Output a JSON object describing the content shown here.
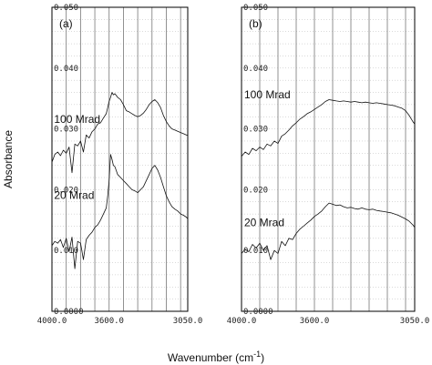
{
  "chart_data": {
    "type": "line",
    "ylabel": "Absorbance",
    "xlabel": "Wavenumber (cm",
    "xlabel_sup": "-1",
    "xlabel_end": ")",
    "panels": [
      {
        "label": "(a)",
        "xlim": [
          4000,
          3050
        ],
        "ylim": [
          0.0,
          0.05
        ],
        "x_ticks": [
          4000,
          3600,
          3050
        ],
        "x_tick_labels": [
          "4000.0",
          "3600.0",
          "3050.0"
        ],
        "y_ticks": [
          0.0,
          0.01,
          0.02,
          0.03,
          0.04,
          0.05
        ],
        "y_tick_labels": [
          "0.0000",
          "0.010",
          "0.020",
          "0.030",
          "0.040",
          "0.050"
        ],
        "grid": true,
        "series": [
          {
            "name": "100 Mrad",
            "label_at": [
              3985,
              0.031
            ],
            "x": [
              4000,
              3980,
              3960,
              3940,
              3920,
              3900,
              3880,
              3860,
              3840,
              3820,
              3800,
              3780,
              3760,
              3740,
              3720,
              3700,
              3680,
              3660,
              3640,
              3620,
              3610,
              3600,
              3590,
              3580,
              3570,
              3560,
              3540,
              3520,
              3500,
              3480,
              3460,
              3440,
              3420,
              3400,
              3380,
              3360,
              3340,
              3320,
              3300,
              3280,
              3260,
              3240,
              3220,
              3200,
              3180,
              3160,
              3140,
              3120,
              3100,
              3080,
              3060,
              3050
            ],
            "y": [
              0.0245,
              0.0258,
              0.0262,
              0.0256,
              0.0265,
              0.026,
              0.027,
              0.0228,
              0.0275,
              0.0272,
              0.028,
              0.0262,
              0.029,
              0.0285,
              0.0295,
              0.03,
              0.0308,
              0.031,
              0.0318,
              0.0325,
              0.0335,
              0.0345,
              0.0352,
              0.036,
              0.0356,
              0.0358,
              0.0352,
              0.0348,
              0.034,
              0.033,
              0.0328,
              0.0325,
              0.0322,
              0.032,
              0.0322,
              0.0326,
              0.0332,
              0.034,
              0.0345,
              0.0348,
              0.0343,
              0.0335,
              0.0322,
              0.0312,
              0.0305,
              0.03,
              0.0298,
              0.0296,
              0.0294,
              0.0292,
              0.029,
              0.0289
            ]
          },
          {
            "name": "20 Mrad",
            "label_at": [
              3985,
              0.0185
            ],
            "x": [
              4000,
              3980,
              3960,
              3940,
              3920,
              3900,
              3880,
              3860,
              3840,
              3820,
              3800,
              3780,
              3760,
              3740,
              3720,
              3700,
              3680,
              3660,
              3640,
              3620,
              3610,
              3600,
              3590,
              3580,
              3570,
              3560,
              3540,
              3520,
              3500,
              3480,
              3460,
              3440,
              3420,
              3400,
              3380,
              3360,
              3340,
              3320,
              3300,
              3280,
              3260,
              3240,
              3220,
              3200,
              3180,
              3160,
              3140,
              3120,
              3100,
              3080,
              3060,
              3050
            ],
            "y": [
              0.0108,
              0.0115,
              0.0112,
              0.0118,
              0.0105,
              0.012,
              0.0098,
              0.0122,
              0.007,
              0.0115,
              0.0112,
              0.0085,
              0.0118,
              0.0125,
              0.013,
              0.0138,
              0.0142,
              0.015,
              0.016,
              0.017,
              0.019,
              0.0215,
              0.0258,
              0.025,
              0.024,
              0.0238,
              0.0225,
              0.022,
              0.0215,
              0.021,
              0.0205,
              0.02,
              0.0198,
              0.0195,
              0.02,
              0.0205,
              0.0215,
              0.0225,
              0.0235,
              0.024,
              0.0232,
              0.022,
              0.0205,
              0.019,
              0.018,
              0.0172,
              0.0168,
              0.0165,
              0.016,
              0.0158,
              0.0155,
              0.0152
            ]
          }
        ]
      },
      {
        "label": "(b)",
        "xlim": [
          4000,
          3050
        ],
        "ylim": [
          0.0,
          0.05
        ],
        "x_ticks": [
          4000,
          3600,
          3050
        ],
        "x_tick_labels": [
          "4000.0",
          "3600.0",
          "3050.0"
        ],
        "y_ticks": [
          0.0,
          0.01,
          0.02,
          0.03,
          0.04,
          0.05
        ],
        "y_tick_labels": [
          "0.0000",
          "0.010",
          "0.020",
          "0.030",
          "0.040",
          "0.050"
        ],
        "grid": true,
        "series": [
          {
            "name": "100 Mrad",
            "label_at": [
              3985,
              0.035
            ],
            "x": [
              4000,
              3980,
              3960,
              3940,
              3920,
              3900,
              3880,
              3860,
              3840,
              3820,
              3800,
              3780,
              3760,
              3740,
              3720,
              3700,
              3680,
              3660,
              3640,
              3620,
              3600,
              3580,
              3560,
              3540,
              3520,
              3500,
              3480,
              3460,
              3440,
              3420,
              3400,
              3380,
              3360,
              3340,
              3320,
              3300,
              3280,
              3260,
              3240,
              3220,
              3200,
              3180,
              3160,
              3140,
              3120,
              3100,
              3080,
              3060,
              3050
            ],
            "y": [
              0.0255,
              0.0262,
              0.0258,
              0.0268,
              0.0264,
              0.027,
              0.0266,
              0.0275,
              0.0272,
              0.028,
              0.0276,
              0.0288,
              0.0292,
              0.0298,
              0.0305,
              0.031,
              0.0316,
              0.032,
              0.0325,
              0.0328,
              0.0332,
              0.0336,
              0.034,
              0.0345,
              0.0348,
              0.0347,
              0.0346,
              0.0345,
              0.0346,
              0.0345,
              0.0344,
              0.0345,
              0.0344,
              0.0343,
              0.0344,
              0.0343,
              0.0342,
              0.0343,
              0.0342,
              0.0341,
              0.034,
              0.0339,
              0.0338,
              0.0336,
              0.0334,
              0.033,
              0.0322,
              0.0312,
              0.0308
            ]
          },
          {
            "name": "20 Mrad",
            "label_at": [
              3985,
              0.014
            ],
            "x": [
              4000,
              3980,
              3960,
              3940,
              3920,
              3900,
              3880,
              3860,
              3840,
              3820,
              3800,
              3780,
              3760,
              3740,
              3720,
              3700,
              3680,
              3660,
              3640,
              3620,
              3600,
              3580,
              3560,
              3540,
              3520,
              3500,
              3480,
              3460,
              3440,
              3420,
              3400,
              3380,
              3360,
              3340,
              3320,
              3300,
              3280,
              3260,
              3240,
              3220,
              3200,
              3180,
              3160,
              3140,
              3120,
              3100,
              3080,
              3060,
              3050
            ],
            "y": [
              0.0095,
              0.0102,
              0.0098,
              0.011,
              0.0104,
              0.0112,
              0.01,
              0.0108,
              0.0085,
              0.01,
              0.0095,
              0.0115,
              0.0108,
              0.012,
              0.0118,
              0.0128,
              0.0135,
              0.014,
              0.0145,
              0.015,
              0.0156,
              0.016,
              0.0165,
              0.0172,
              0.0178,
              0.0176,
              0.0174,
              0.0175,
              0.0172,
              0.017,
              0.0171,
              0.0169,
              0.0168,
              0.017,
              0.0168,
              0.0167,
              0.0168,
              0.0166,
              0.0165,
              0.0164,
              0.0163,
              0.0162,
              0.016,
              0.0158,
              0.0155,
              0.0152,
              0.0148,
              0.0142,
              0.0138
            ]
          }
        ]
      }
    ]
  }
}
